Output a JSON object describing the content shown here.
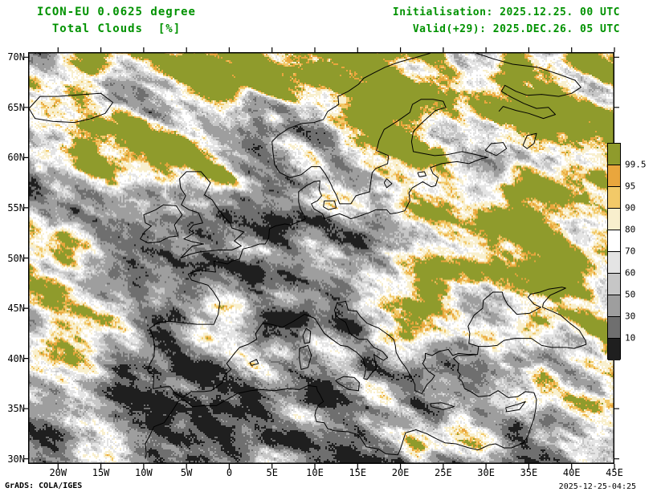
{
  "header": {
    "model_line": "ICON-EU 0.0625 degree",
    "field_line": "Total Clouds  [%]",
    "init_line": "Initialisation: 2025.12.25. 00 UTC",
    "valid_line": "Valid(+29): 2025.DEC.26. 05 UTC",
    "text_color": "#009200"
  },
  "axes": {
    "lat_labels": [
      "70N",
      "65N",
      "60N",
      "55N",
      "50N",
      "45N",
      "40N",
      "35N",
      "30N"
    ],
    "lat_values": [
      70,
      65,
      60,
      55,
      50,
      45,
      40,
      35,
      30
    ],
    "lon_labels": [
      "20W",
      "15W",
      "10W",
      "5W",
      "0",
      "5E",
      "10E",
      "15E",
      "20E",
      "25E",
      "30E",
      "35E",
      "40E",
      "45E"
    ],
    "lon_values": [
      -20,
      -15,
      -10,
      -5,
      0,
      5,
      10,
      15,
      20,
      25,
      30,
      35,
      40,
      45
    ],
    "extent": {
      "lon_min": -23.5,
      "lon_max": 45,
      "lat_min": 29.5,
      "lat_max": 70.5
    }
  },
  "legend": {
    "tick_labels": [
      "99.5",
      "95",
      "90",
      "80",
      "70",
      "60",
      "50",
      "30",
      "10"
    ],
    "levels": [
      10,
      30,
      50,
      60,
      70,
      80,
      90,
      95,
      99.5
    ],
    "colors_top_to_bottom": [
      "#8f9b2c",
      "#e9a63d",
      "#f2c968",
      "#f8efcd",
      "#ffffff",
      "#e4e4e4",
      "#c6c6c6",
      "#9e9e9e",
      "#6f6f6f",
      "#1f1f1f"
    ]
  },
  "map": {
    "frame_color": "#000000",
    "coastline_color": "#000000"
  },
  "footer": {
    "left": "GrADS: COLA/IGES",
    "right": "2025-12-25-04:25"
  },
  "chart_data": {
    "type": "heatmap",
    "title": "Total Clouds  [%]",
    "model": "ICON-EU 0.0625 degree",
    "init_time": "2025.12.25. 00 UTC",
    "valid_time": "Valid(+29): 2025.DEC.26. 05 UTC",
    "units": "%",
    "levels": [
      10,
      30,
      50,
      60,
      70,
      80,
      90,
      95,
      99.5
    ],
    "palette_low_to_high": [
      "#1f1f1f",
      "#6f6f6f",
      "#9e9e9e",
      "#c6c6c6",
      "#e4e4e4",
      "#ffffff",
      "#f8efcd",
      "#f2c968",
      "#e9a63d",
      "#8f9b2c"
    ],
    "region": {
      "lon_range": [
        -23.5,
        45
      ],
      "lat_range": [
        29.5,
        70.5
      ]
    },
    "description": "Gridded total cloud cover forecast field over Europe; overcast (95-100%) bands over eastern Europe/Russia, Scandinavia and the Atlantic, broken cover (30-80%, grays/white) over France, central Europe, Iberia and the central Mediterranean."
  }
}
